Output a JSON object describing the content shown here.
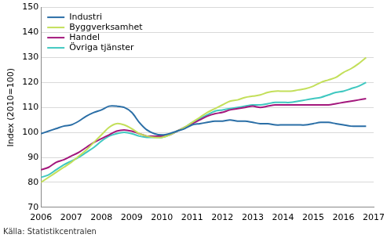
{
  "chart_data": {
    "type": "line",
    "y_label": "Index (2010=100)",
    "source": "Källa: Statistikcentralen",
    "x": [
      2006,
      2006.25,
      2006.5,
      2006.75,
      2007,
      2007.25,
      2007.5,
      2007.75,
      2008,
      2008.25,
      2008.5,
      2008.75,
      2009,
      2009.25,
      2009.5,
      2009.75,
      2010,
      2010.25,
      2010.5,
      2010.75,
      2011,
      2011.25,
      2011.5,
      2011.75,
      2012,
      2012.25,
      2012.5,
      2012.75,
      2013,
      2013.25,
      2013.5,
      2013.75,
      2014,
      2014.25,
      2014.5,
      2014.75,
      2015,
      2015.25,
      2015.5,
      2015.75,
      2016,
      2016.25,
      2016.5,
      2016.75
    ],
    "xlim": [
      2006,
      2017
    ],
    "xticks": [
      2006,
      2007,
      2008,
      2009,
      2010,
      2011,
      2012,
      2013,
      2014,
      2015,
      2016,
      2017
    ],
    "ylim": [
      70,
      150
    ],
    "yticks": [
      70,
      80,
      90,
      100,
      110,
      120,
      130,
      140,
      150
    ],
    "grid": true,
    "legend": "upper left",
    "series": [
      {
        "name": "Industri",
        "color": "#2a6ea6",
        "values": [
          99.5,
          100.5,
          101.5,
          102.5,
          103,
          104.5,
          106.5,
          108,
          109,
          110.5,
          110.5,
          110,
          108,
          104,
          101,
          99.5,
          99,
          99.5,
          100.5,
          101.5,
          103,
          103.5,
          104,
          104.5,
          104.5,
          105,
          104.5,
          104.5,
          104,
          103.5,
          103.5,
          103,
          103,
          103,
          103,
          103,
          103.5,
          104,
          104,
          103.5,
          103,
          102.5,
          102.5,
          102.5
        ]
      },
      {
        "name": "Byggverksamhet",
        "color": "#c3df5a",
        "values": [
          80,
          82,
          84,
          86,
          88,
          90.5,
          93,
          96,
          99,
          102,
          103.5,
          103,
          101.5,
          99.5,
          98.5,
          98,
          98,
          99,
          100.5,
          102,
          104,
          106,
          108,
          109.5,
          111,
          112.5,
          113,
          114,
          114.5,
          115,
          116,
          116.5,
          116.5,
          116.5,
          117,
          117.5,
          118.5,
          120,
          121,
          122,
          124,
          125.5,
          127.5,
          130
        ]
      },
      {
        "name": "Handel",
        "color": "#a3177c",
        "values": [
          85,
          86,
          88,
          89,
          90.5,
          92,
          94,
          96,
          97.5,
          99,
          100.5,
          101,
          100.5,
          99.5,
          98.5,
          98.5,
          98.5,
          99,
          100.5,
          102,
          103.5,
          105,
          106.5,
          107.5,
          108,
          109,
          109.5,
          110,
          110.5,
          110,
          110.5,
          111,
          111,
          111,
          111,
          111,
          111,
          111,
          111,
          111.5,
          112,
          112.5,
          113,
          113.5
        ]
      },
      {
        "name": "Övriga tjänster",
        "color": "#3fc8c0",
        "values": [
          82,
          83,
          85,
          87,
          88.5,
          90,
          92,
          94,
          96.5,
          98.5,
          99.5,
          100,
          99.5,
          98.5,
          98,
          98,
          98,
          99,
          100.5,
          102,
          104,
          105.5,
          107,
          108.5,
          109,
          109.5,
          110,
          110.5,
          111,
          111,
          111.5,
          112,
          112,
          112,
          112.5,
          113,
          113.5,
          114,
          115,
          116,
          116.5,
          117.5,
          118.5,
          120
        ]
      }
    ]
  }
}
